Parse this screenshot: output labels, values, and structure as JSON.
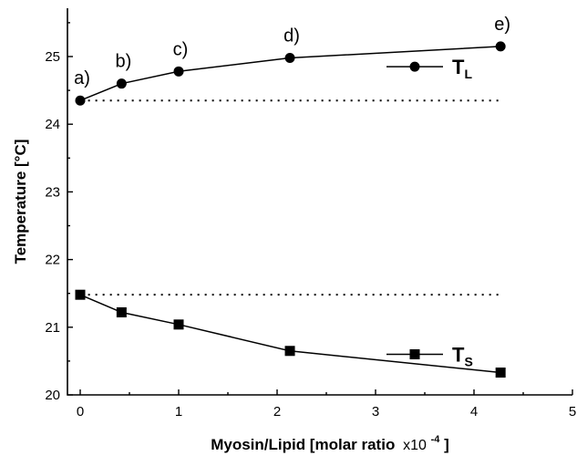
{
  "chart_data": {
    "type": "line",
    "title": "",
    "xlabel": "Myosin/Lipid [molar ratio",
    "xlabel_suffix": "x10",
    "xlabel_exponent": "-4",
    "xlabel_close": "]",
    "ylabel": "Temperature [°C]",
    "xlim": [
      -0.1,
      5
    ],
    "ylim": [
      20,
      25.5
    ],
    "xticks": [
      0,
      1,
      2,
      3,
      4,
      5
    ],
    "yticks": [
      20,
      21,
      22,
      23,
      24,
      25
    ],
    "grid": false,
    "legend_position": "right",
    "series": [
      {
        "name": "T",
        "subscript": "L",
        "marker": "circle",
        "x": [
          0,
          0.42,
          1.0,
          2.13,
          4.27
        ],
        "y": [
          24.35,
          24.6,
          24.78,
          24.98,
          25.15
        ],
        "point_labels": [
          "a)",
          "b)",
          "c)",
          "d)",
          "e)"
        ],
        "reference_y": 24.35
      },
      {
        "name": "T",
        "subscript": "S",
        "marker": "square",
        "x": [
          0,
          0.42,
          1.0,
          2.13,
          4.27
        ],
        "y": [
          21.48,
          21.22,
          21.04,
          20.65,
          20.33
        ],
        "reference_y": 21.48
      }
    ],
    "colors": {
      "line": "#000000",
      "marker": "#000000"
    }
  }
}
